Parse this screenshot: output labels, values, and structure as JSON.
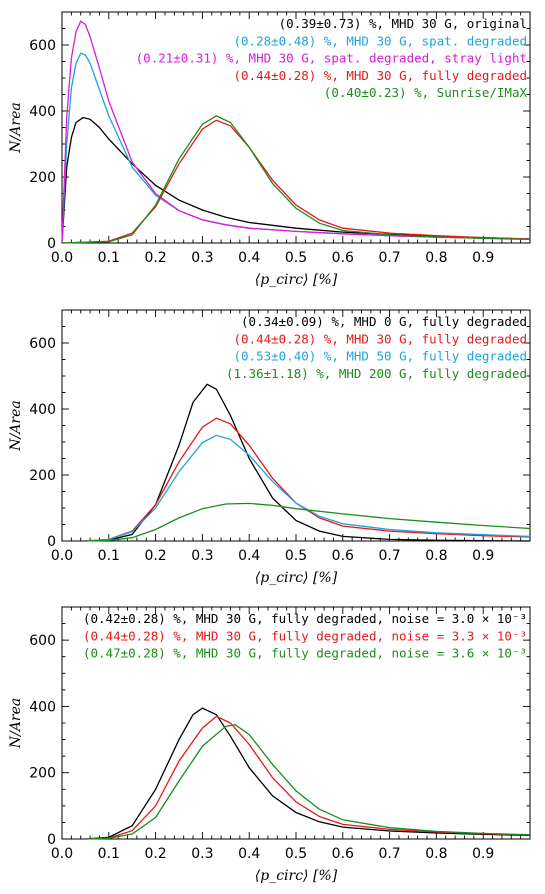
{
  "chart_data": [
    {
      "type": "line",
      "xlabel": "⟨p_circ⟩ [%]",
      "ylabel": "N/Area",
      "xlim": [
        0.0,
        1.0
      ],
      "ylim": [
        0,
        700
      ],
      "xticks": [
        "0.0",
        "0.1",
        "0.2",
        "0.3",
        "0.4",
        "0.5",
        "0.6",
        "0.7",
        "0.8",
        "0.9"
      ],
      "yticks": [
        "0",
        "200",
        "400",
        "600"
      ],
      "legend_position": "top-right",
      "series": [
        {
          "name": "(0.39±0.73) %, MHD 30 G, original",
          "color": "#000000",
          "points": [
            [
              0.0,
              0
            ],
            [
              0.01,
              230
            ],
            [
              0.02,
              320
            ],
            [
              0.03,
              365
            ],
            [
              0.045,
              380
            ],
            [
              0.06,
              375
            ],
            [
              0.08,
              350
            ],
            [
              0.1,
              315
            ],
            [
              0.15,
              240
            ],
            [
              0.2,
              175
            ],
            [
              0.25,
              130
            ],
            [
              0.3,
              100
            ],
            [
              0.35,
              78
            ],
            [
              0.4,
              62
            ],
            [
              0.5,
              45
            ],
            [
              0.6,
              33
            ],
            [
              0.7,
              26
            ],
            [
              0.8,
              20
            ],
            [
              0.9,
              16
            ],
            [
              1.0,
              12
            ]
          ]
        },
        {
          "name": "(0.28±0.48) %, MHD 30 G, spat. degraded",
          "color": "#1ea4dc",
          "points": [
            [
              0.0,
              0
            ],
            [
              0.01,
              300
            ],
            [
              0.02,
              470
            ],
            [
              0.03,
              545
            ],
            [
              0.04,
              575
            ],
            [
              0.05,
              570
            ],
            [
              0.06,
              545
            ],
            [
              0.08,
              465
            ],
            [
              0.1,
              385
            ],
            [
              0.15,
              230
            ],
            [
              0.2,
              145
            ],
            [
              0.25,
              98
            ],
            [
              0.3,
              70
            ],
            [
              0.35,
              55
            ],
            [
              0.4,
              45
            ],
            [
              0.5,
              35
            ],
            [
              0.6,
              28
            ],
            [
              0.7,
              22
            ],
            [
              0.8,
              18
            ],
            [
              0.9,
              15
            ],
            [
              1.0,
              12
            ]
          ]
        },
        {
          "name": "(0.21±0.31) %, MHD 30 G, spat. degraded, stray light",
          "color": "#d81cd8",
          "points": [
            [
              0.0,
              0
            ],
            [
              0.01,
              380
            ],
            [
              0.02,
              560
            ],
            [
              0.03,
              640
            ],
            [
              0.04,
              672
            ],
            [
              0.05,
              662
            ],
            [
              0.06,
              625
            ],
            [
              0.08,
              530
            ],
            [
              0.1,
              430
            ],
            [
              0.15,
              245
            ],
            [
              0.2,
              150
            ],
            [
              0.25,
              98
            ],
            [
              0.3,
              70
            ],
            [
              0.35,
              55
            ],
            [
              0.4,
              45
            ],
            [
              0.5,
              35
            ],
            [
              0.6,
              28
            ],
            [
              0.7,
              22
            ],
            [
              0.8,
              18
            ],
            [
              0.9,
              15
            ],
            [
              1.0,
              12
            ]
          ]
        },
        {
          "name": "(0.44±0.28) %, MHD 30 G, fully degraded",
          "color": "#e31a1c",
          "points": [
            [
              0.0,
              0
            ],
            [
              0.1,
              5
            ],
            [
              0.15,
              30
            ],
            [
              0.2,
              110
            ],
            [
              0.25,
              240
            ],
            [
              0.3,
              345
            ],
            [
              0.33,
              372
            ],
            [
              0.36,
              355
            ],
            [
              0.4,
              290
            ],
            [
              0.45,
              190
            ],
            [
              0.5,
              115
            ],
            [
              0.55,
              70
            ],
            [
              0.6,
              45
            ],
            [
              0.7,
              30
            ],
            [
              0.8,
              22
            ],
            [
              0.9,
              16
            ],
            [
              1.0,
              12
            ]
          ]
        },
        {
          "name": "(0.40±0.23) %, Sunrise/IMaX",
          "color": "#1c8c1c",
          "points": [
            [
              0.0,
              0
            ],
            [
              0.1,
              4
            ],
            [
              0.15,
              25
            ],
            [
              0.2,
              115
            ],
            [
              0.25,
              255
            ],
            [
              0.3,
              360
            ],
            [
              0.33,
              385
            ],
            [
              0.36,
              365
            ],
            [
              0.4,
              290
            ],
            [
              0.45,
              180
            ],
            [
              0.5,
              105
            ],
            [
              0.55,
              60
            ],
            [
              0.6,
              38
            ],
            [
              0.7,
              25
            ],
            [
              0.8,
              18
            ],
            [
              0.9,
              14
            ],
            [
              1.0,
              11
            ]
          ]
        }
      ]
    },
    {
      "type": "line",
      "xlabel": "⟨p_circ⟩ [%]",
      "ylabel": "N/Area",
      "xlim": [
        0.0,
        1.0
      ],
      "ylim": [
        0,
        700
      ],
      "xticks": [
        "0.0",
        "0.1",
        "0.2",
        "0.3",
        "0.4",
        "0.5",
        "0.6",
        "0.7",
        "0.8",
        "0.9"
      ],
      "yticks": [
        "0",
        "200",
        "400",
        "600"
      ],
      "legend_position": "top-right",
      "series": [
        {
          "name": "(0.34±0.09) %, MHD   0 G, fully degraded",
          "color": "#000000",
          "points": [
            [
              0.05,
              0
            ],
            [
              0.1,
              3
            ],
            [
              0.15,
              20
            ],
            [
              0.2,
              110
            ],
            [
              0.25,
              290
            ],
            [
              0.28,
              420
            ],
            [
              0.31,
              475
            ],
            [
              0.33,
              460
            ],
            [
              0.36,
              380
            ],
            [
              0.4,
              250
            ],
            [
              0.45,
              130
            ],
            [
              0.5,
              62
            ],
            [
              0.55,
              30
            ],
            [
              0.6,
              14
            ],
            [
              0.7,
              5
            ],
            [
              0.8,
              2
            ],
            [
              0.9,
              1
            ],
            [
              1.0,
              0
            ]
          ]
        },
        {
          "name": "(0.44±0.28) %, MHD  30 G, fully degraded",
          "color": "#e31a1c",
          "points": [
            [
              0.05,
              0
            ],
            [
              0.1,
              5
            ],
            [
              0.15,
              30
            ],
            [
              0.2,
              110
            ],
            [
              0.25,
              240
            ],
            [
              0.3,
              345
            ],
            [
              0.33,
              372
            ],
            [
              0.36,
              355
            ],
            [
              0.4,
              290
            ],
            [
              0.45,
              190
            ],
            [
              0.5,
              115
            ],
            [
              0.55,
              70
            ],
            [
              0.6,
              45
            ],
            [
              0.7,
              30
            ],
            [
              0.8,
              22
            ],
            [
              0.9,
              16
            ],
            [
              1.0,
              12
            ]
          ]
        },
        {
          "name": "(0.53±0.40) %, MHD  50 G, fully degraded",
          "color": "#1ea4dc",
          "points": [
            [
              0.05,
              0
            ],
            [
              0.1,
              5
            ],
            [
              0.15,
              28
            ],
            [
              0.2,
              100
            ],
            [
              0.25,
              210
            ],
            [
              0.3,
              298
            ],
            [
              0.33,
              320
            ],
            [
              0.36,
              308
            ],
            [
              0.4,
              260
            ],
            [
              0.45,
              180
            ],
            [
              0.5,
              115
            ],
            [
              0.55,
              75
            ],
            [
              0.6,
              52
            ],
            [
              0.7,
              35
            ],
            [
              0.8,
              25
            ],
            [
              0.9,
              19
            ],
            [
              1.0,
              14
            ]
          ]
        },
        {
          "name": "(1.36±1.18) %, MHD 200 G, fully degraded",
          "color": "#1c8c1c",
          "points": [
            [
              0.05,
              0
            ],
            [
              0.1,
              2
            ],
            [
              0.15,
              10
            ],
            [
              0.2,
              35
            ],
            [
              0.25,
              70
            ],
            [
              0.3,
              98
            ],
            [
              0.35,
              112
            ],
            [
              0.4,
              114
            ],
            [
              0.45,
              108
            ],
            [
              0.5,
              98
            ],
            [
              0.6,
              82
            ],
            [
              0.7,
              68
            ],
            [
              0.8,
              57
            ],
            [
              0.9,
              47
            ],
            [
              1.0,
              38
            ]
          ]
        }
      ]
    },
    {
      "type": "line",
      "xlabel": "⟨p_circ⟩ [%]",
      "ylabel": "N/Area",
      "xlim": [
        0.0,
        1.0
      ],
      "ylim": [
        0,
        700
      ],
      "xticks": [
        "0.0",
        "0.1",
        "0.2",
        "0.3",
        "0.4",
        "0.5",
        "0.6",
        "0.7",
        "0.8",
        "0.9"
      ],
      "yticks": [
        "0",
        "200",
        "400",
        "600"
      ],
      "legend_position": "top-right",
      "series": [
        {
          "name": "(0.42±0.28) %, MHD 30 G, fully degraded, noise = 3.0 × 10⁻³",
          "color": "#000000",
          "points": [
            [
              0.05,
              0
            ],
            [
              0.1,
              5
            ],
            [
              0.15,
              40
            ],
            [
              0.2,
              150
            ],
            [
              0.25,
              300
            ],
            [
              0.28,
              375
            ],
            [
              0.3,
              395
            ],
            [
              0.33,
              375
            ],
            [
              0.36,
              310
            ],
            [
              0.4,
              215
            ],
            [
              0.45,
              130
            ],
            [
              0.5,
              80
            ],
            [
              0.55,
              52
            ],
            [
              0.6,
              36
            ],
            [
              0.7,
              24
            ],
            [
              0.8,
              18
            ],
            [
              0.9,
              14
            ],
            [
              1.0,
              11
            ]
          ]
        },
        {
          "name": "(0.44±0.28) %, MHD 30 G, fully degraded, noise = 3.3 × 10⁻³",
          "color": "#e31a1c",
          "points": [
            [
              0.05,
              0
            ],
            [
              0.1,
              3
            ],
            [
              0.15,
              25
            ],
            [
              0.2,
              100
            ],
            [
              0.25,
              235
            ],
            [
              0.3,
              335
            ],
            [
              0.33,
              370
            ],
            [
              0.36,
              350
            ],
            [
              0.4,
              285
            ],
            [
              0.45,
              185
            ],
            [
              0.5,
              112
            ],
            [
              0.55,
              68
            ],
            [
              0.6,
              44
            ],
            [
              0.7,
              29
            ],
            [
              0.8,
              21
            ],
            [
              0.9,
              16
            ],
            [
              1.0,
              12
            ]
          ]
        },
        {
          "name": "(0.47±0.28) %, MHD 30 G, fully degraded, noise = 3.6 × 10⁻³",
          "color": "#1c8c1c",
          "points": [
            [
              0.05,
              0
            ],
            [
              0.1,
              2
            ],
            [
              0.15,
              15
            ],
            [
              0.2,
              65
            ],
            [
              0.25,
              175
            ],
            [
              0.3,
              280
            ],
            [
              0.35,
              340
            ],
            [
              0.37,
              345
            ],
            [
              0.4,
              315
            ],
            [
              0.45,
              225
            ],
            [
              0.5,
              145
            ],
            [
              0.55,
              90
            ],
            [
              0.6,
              58
            ],
            [
              0.7,
              34
            ],
            [
              0.8,
              23
            ],
            [
              0.9,
              17
            ],
            [
              1.0,
              13
            ]
          ]
        }
      ]
    }
  ]
}
